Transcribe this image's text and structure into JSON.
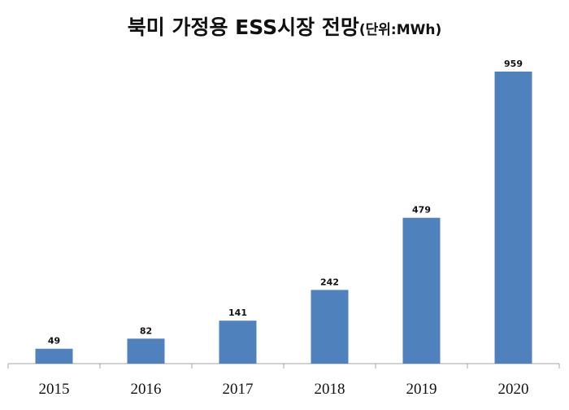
{
  "chart_data": {
    "type": "bar",
    "title": "북미 가정용 ESS시장 전망",
    "title_unit": "(단위:MWh)",
    "categories": [
      "2015",
      "2016",
      "2017",
      "2018",
      "2019",
      "2020"
    ],
    "values": [
      49,
      82,
      141,
      242,
      479,
      959
    ],
    "xlabel": "",
    "ylabel": "",
    "ylim": [
      0,
      1000
    ],
    "grid": false,
    "legend": "none",
    "bar_color": "#4F81BD",
    "data_labels": true
  }
}
